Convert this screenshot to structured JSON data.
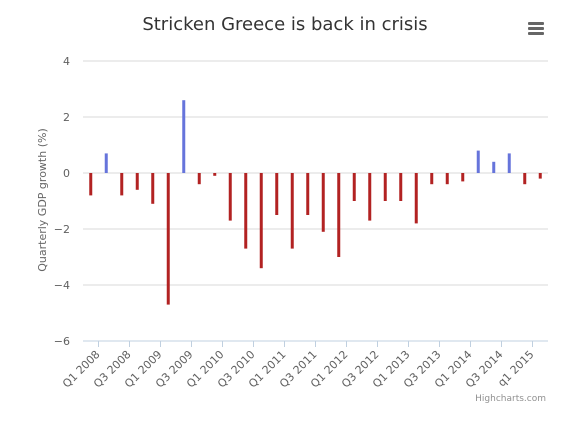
{
  "title": "Stricken Greece is back in crisis",
  "menu_icon": "hamburger-menu-icon",
  "credits": "Highcharts.com",
  "chart_data": {
    "type": "bar",
    "title": "Stricken Greece is back in crisis",
    "xlabel": "",
    "ylabel": "Quarterly GDP growth (%)",
    "ylim": [
      -6,
      4
    ],
    "yticks": [
      -6,
      -4,
      -2,
      0,
      2,
      4
    ],
    "ytick_labels": [
      "−6",
      "−4",
      "−2",
      "0",
      "2",
      "4"
    ],
    "grid": true,
    "x_tick_labels": [
      "Q1 2008",
      "Q3 2008",
      "Q1 2009",
      "Q3 2009",
      "Q1 2010",
      "Q3 2010",
      "Q1 2011",
      "Q3 2011",
      "Q1 2012",
      "Q3 2012",
      "Q1 2013",
      "Q3 2013",
      "Q1 2014",
      "Q3 2014",
      "q1 2015"
    ],
    "positive_color": "#6674db",
    "negative_color": "#b22222",
    "values": [
      -0.8,
      0.7,
      -0.8,
      -0.6,
      -1.1,
      -4.7,
      2.6,
      -0.4,
      -0.1,
      -1.7,
      -2.7,
      -3.4,
      -1.5,
      -2.7,
      -1.5,
      -2.1,
      -3.0,
      -1.0,
      -1.7,
      -1.0,
      -1.0,
      -1.8,
      -0.4,
      -0.4,
      -0.3,
      0.8,
      0.4,
      0.7,
      -0.4,
      -0.2
    ]
  }
}
